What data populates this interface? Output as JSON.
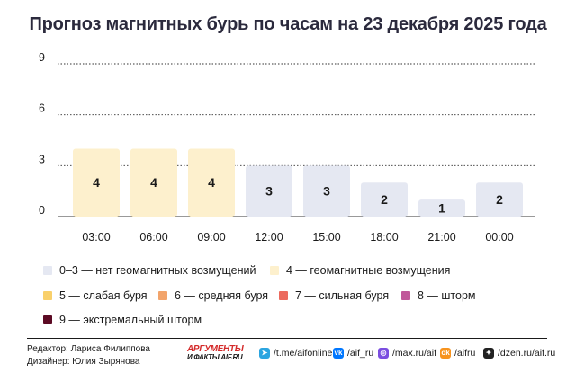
{
  "title": "Прогноз магнитных бурь по часам на 23 декабря 2025 года",
  "chart_data": {
    "type": "bar",
    "categories": [
      "03:00",
      "06:00",
      "09:00",
      "12:00",
      "15:00",
      "18:00",
      "21:00",
      "00:00"
    ],
    "values": [
      4,
      4,
      4,
      3,
      3,
      2,
      1,
      2
    ],
    "data_labels": [
      "4",
      "4",
      "4",
      "3",
      "3",
      "2",
      "1",
      "2"
    ],
    "ylim": [
      0,
      9
    ],
    "yticks": [
      0,
      3,
      6,
      9
    ],
    "ytick_labels": [
      "0",
      "3",
      "6",
      "9"
    ],
    "grid": true,
    "bar_colors": [
      "#fdf0cd",
      "#fdf0cd",
      "#fdf0cd",
      "#e5e8f2",
      "#e5e8f2",
      "#e5e8f2",
      "#e5e8f2",
      "#e5e8f2"
    ]
  },
  "legend": [
    {
      "label": "0–3 — нет геомагнитных возмущений",
      "color": "#e5e8f2"
    },
    {
      "label": "4 — геомагнитные возмущения",
      "color": "#fdf0cd"
    },
    {
      "label": "5 — слабая буря",
      "color": "#f9d06b"
    },
    {
      "label": "6 — средняя буря",
      "color": "#f2a46b"
    },
    {
      "label": "7 — сильная буря",
      "color": "#ec6a5e"
    },
    {
      "label": "8 — шторм",
      "color": "#c0589a"
    },
    {
      "label": "9 — экстремальный шторм",
      "color": "#5c0a24"
    }
  ],
  "footer": {
    "editor": "Редактор: Лариса Филиппова",
    "designer": "Дизайнер: Юлия Зырянова",
    "logo_line1": "АРГУМЕНТЫ",
    "logo_line2": "И ФАКТЫ AIF.RU",
    "links": [
      {
        "icon": "telegram-icon",
        "text": "/t.me/aifonline",
        "color": "#2ca5e0",
        "glyph": "➤"
      },
      {
        "icon": "vk-icon",
        "text": "/aif_ru",
        "color": "#0077ff",
        "glyph": "vk"
      },
      {
        "icon": "max-icon",
        "text": "/max.ru/aif",
        "color": "#7b4ee0",
        "glyph": "◎"
      },
      {
        "icon": "odnoklassniki-icon",
        "text": "/aifru",
        "color": "#f7931e",
        "glyph": "ok"
      },
      {
        "icon": "dzen-icon",
        "text": "/dzen.ru/aif.ru",
        "color": "#222222",
        "glyph": "✦"
      }
    ]
  }
}
